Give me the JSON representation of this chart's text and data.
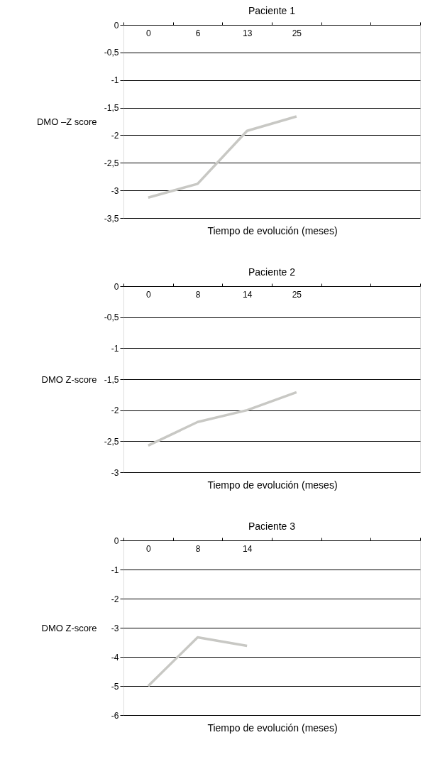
{
  "chart_data": [
    {
      "type": "line",
      "title": "Paciente 1",
      "xlabel": "Tiempo de evolución (meses)",
      "ylabel": "DMO –Z score",
      "categories": [
        "0",
        "6",
        "13",
        "25",
        null,
        null
      ],
      "series": [
        {
          "color": "#c8c8c4",
          "values": [
            -3.13,
            -2.88,
            -1.92,
            -1.66,
            null,
            null
          ]
        }
      ],
      "ylim": [
        -3.5,
        0
      ],
      "yticks": [
        {
          "value": -3.5,
          "label": "-3,5"
        },
        -3,
        {
          "value": -2.5,
          "label": "-2,5"
        },
        -2,
        {
          "value": -1.5,
          "label": "-1,5"
        },
        -1,
        {
          "value": -0.5,
          "label": "-0,5"
        },
        0
      ],
      "grid": "y",
      "legend": false,
      "marker": "none",
      "line_style": "solid"
    },
    {
      "type": "line",
      "title": "Paciente 2",
      "xlabel": "Tiempo de evolución (meses)",
      "ylabel": "DMO Z-score",
      "categories": [
        "0",
        "8",
        "14",
        "25",
        null,
        null
      ],
      "series": [
        {
          "color": "#c8c8c4",
          "values": [
            -2.57,
            -2.19,
            -2.0,
            -1.71,
            null,
            null
          ]
        }
      ],
      "ylim": [
        -3,
        0
      ],
      "yticks": [
        -3,
        {
          "value": -2.5,
          "label": "-2,5"
        },
        -2,
        {
          "value": -1.5,
          "label": "-1,5"
        },
        -1,
        {
          "value": -0.5,
          "label": "-0,5"
        },
        0
      ],
      "grid": "y",
      "legend": false,
      "marker": "none",
      "line_style": "solid"
    },
    {
      "type": "line",
      "title": "Paciente 3",
      "xlabel": "Tiempo de evolución (meses)",
      "ylabel": "DMO Z-score",
      "categories": [
        "0",
        "8",
        "14",
        null,
        null,
        null
      ],
      "series": [
        {
          "color": "#c8c8c4",
          "values": [
            -5.0,
            -3.33,
            -3.62,
            null,
            null,
            null
          ]
        }
      ],
      "ylim": [
        -6,
        0
      ],
      "yticks": [
        -6,
        -5,
        -4,
        -3,
        -2,
        -1,
        0
      ],
      "grid": "y",
      "legend": false,
      "marker": "none",
      "line_style": "solid"
    }
  ]
}
